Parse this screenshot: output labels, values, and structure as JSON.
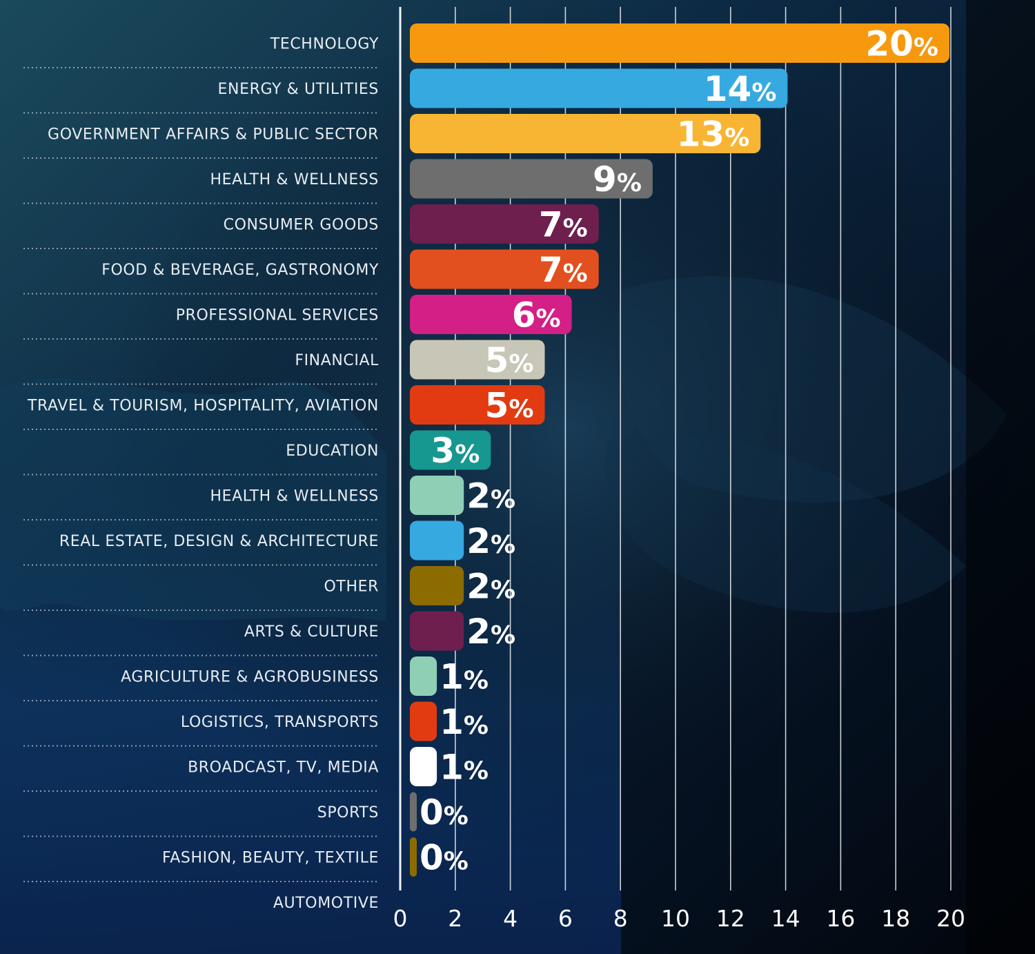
{
  "chart_data": {
    "type": "bar",
    "orientation": "horizontal",
    "categories": [
      "TECHNOLOGY",
      "ENERGY & UTILITIES",
      "GOVERNMENT AFFAIRS & PUBLIC SECTOR",
      "HEALTH & WELLNESS",
      "CONSUMER GOODS",
      "FOOD & BEVERAGE, GASTRONOMY",
      "PROFESSIONAL SERVICES",
      "FINANCIAL",
      "TRAVEL & TOURISM, HOSPITALITY, AVIATION",
      "EDUCATION",
      "HEALTH & WELLNESS",
      "REAL ESTATE, DESIGN & ARCHITECTURE",
      "OTHER",
      "ARTS & CULTURE",
      "AGRICULTURE & AGROBUSINESS",
      "LOGISTICS, TRANSPORTS",
      "BROADCAST, TV, MEDIA",
      "SPORTS",
      "FASHION, BEAUTY, TEXTILE"
    ],
    "extra_category_label": "AUTOMOTIVE",
    "values": [
      20,
      14,
      13,
      9,
      7,
      7,
      6,
      5,
      5,
      3,
      2,
      2,
      2,
      2,
      1,
      1,
      1,
      0,
      0
    ],
    "value_labels": [
      "20",
      "14",
      "13",
      "9",
      "7",
      "7",
      "6",
      "5",
      "5",
      "3",
      "2",
      "2",
      "2",
      "2",
      "1",
      "1",
      "1",
      "0",
      "0"
    ],
    "value_suffix": "%",
    "colors": [
      "#f7990f",
      "#36a9e1",
      "#f8b533",
      "#6e6e6e",
      "#6e1f4e",
      "#e2501f",
      "#d41f86",
      "#c8c6b6",
      "#e23b12",
      "#16978f",
      "#8fcfb5",
      "#36a9e1",
      "#8c6b00",
      "#6e1f4e",
      "#8fcfb5",
      "#e23b12",
      "#ffffff",
      "#6e6e6e",
      "#8c6b00"
    ],
    "xlim": [
      0,
      20
    ],
    "xticks": [
      "0",
      "2",
      "4",
      "6",
      "8",
      "10",
      "12",
      "14",
      "16",
      "18",
      "20"
    ],
    "grid": true,
    "title": "",
    "xlabel": "",
    "ylabel": ""
  }
}
